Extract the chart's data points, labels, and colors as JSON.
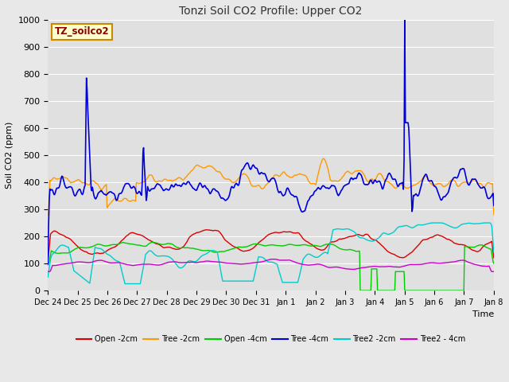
{
  "title": "Tonzi Soil CO2 Profile: Upper CO2",
  "xlabel": "Time",
  "ylabel": "Soil CO2 (ppm)",
  "ylim": [
    0,
    1000
  ],
  "fig_bg": "#e8e8e8",
  "ax_bg": "#e0e0e0",
  "label_box_text": "TZ_soilco2",
  "label_box_color": "#ffffcc",
  "label_box_edge": "#cc8800",
  "series": {
    "Open -2cm": {
      "color": "#dd0000",
      "lw": 1.0
    },
    "Tree -2cm": {
      "color": "#ff9900",
      "lw": 1.0
    },
    "Open -4cm": {
      "color": "#00cc00",
      "lw": 1.0
    },
    "Tree -4cm": {
      "color": "#0000dd",
      "lw": 1.2
    },
    "Tree2 -2cm": {
      "color": "#00cccc",
      "lw": 1.0
    },
    "Tree2 - 4cm": {
      "color": "#cc00cc",
      "lw": 1.0
    }
  },
  "xtick_labels": [
    "Dec 24",
    "Dec 25",
    "Dec 26",
    "Dec 27",
    "Dec 28",
    "Dec 29",
    "Dec 30",
    "Dec 31",
    "Jan 1",
    "Jan 2",
    "Jan 3",
    "Jan 4",
    "Jan 5",
    "Jan 6",
    "Jan 7",
    "Jan 8"
  ],
  "n_points": 672,
  "seed": 42
}
